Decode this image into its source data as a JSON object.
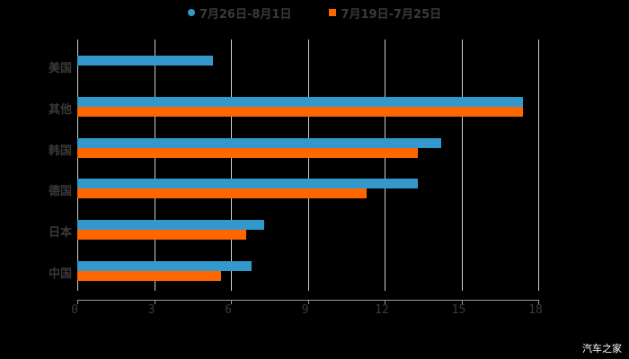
{
  "legend": {
    "series1_label": "7月26日-8月1日",
    "series2_label": "7月19日-7月25日"
  },
  "colors": {
    "series1": "#3399cc",
    "series2": "#ff6600"
  },
  "watermark": "汽车之家",
  "chart_data": {
    "type": "bar",
    "orientation": "horizontal",
    "title": "",
    "xlabel": "",
    "ylabel": "",
    "categories": [
      "美国",
      "其他",
      "韩国",
      "德国",
      "日本",
      "中国"
    ],
    "series": [
      {
        "name": "7月26日-8月1日",
        "color": "#3399cc",
        "values": [
          5.3,
          17.4,
          14.2,
          13.3,
          7.3,
          6.8
        ]
      },
      {
        "name": "7月19日-7月25日",
        "color": "#ff6600",
        "values": [
          null,
          17.4,
          13.3,
          11.3,
          6.6,
          5.6
        ]
      }
    ],
    "xlim": [
      0,
      18
    ],
    "xticks": [
      "0",
      "3",
      "6",
      "9",
      "12",
      "15",
      "18"
    ],
    "grid": true,
    "legend_position": "top"
  }
}
